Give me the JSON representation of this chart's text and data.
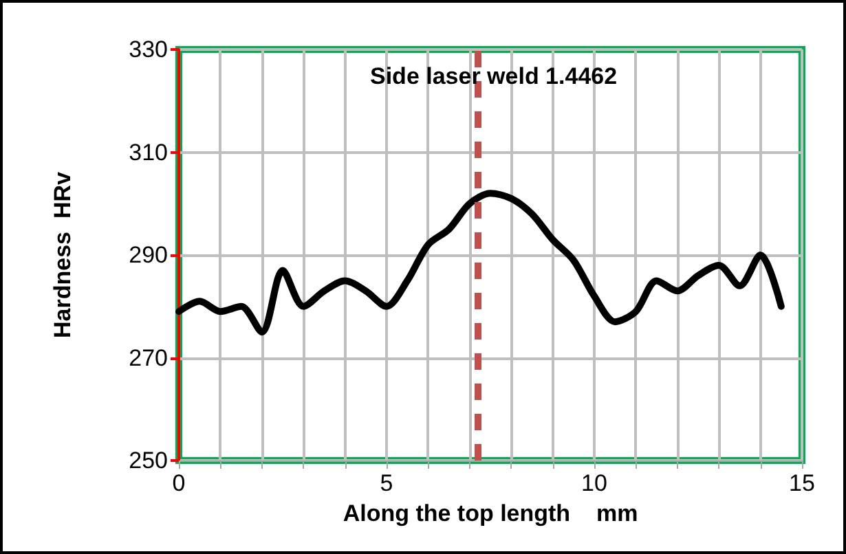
{
  "chart_data": {
    "type": "line",
    "title": "Side laser weld 1.4462",
    "xlabel": "Along the top length    mm",
    "ylabel": "Hardness  HRv",
    "x": [
      0,
      0.5,
      1,
      1.5,
      2,
      2.5,
      3,
      3.5,
      4,
      4.5,
      5,
      5.5,
      6,
      6.5,
      7,
      7.5,
      8,
      8.5,
      9,
      9.5,
      10,
      10.5,
      11,
      11.5,
      12,
      12.5,
      13,
      13.5,
      14,
      14.5
    ],
    "series": [
      {
        "color": "#000000",
        "values": [
          279,
          281,
          279,
          280,
          275,
          287,
          280,
          283,
          285,
          283,
          280,
          285,
          292,
          295,
          300,
          302,
          301,
          298,
          293,
          289,
          282,
          277,
          279,
          285,
          283,
          286,
          288,
          284,
          290,
          280
        ]
      }
    ],
    "xlim": [
      0,
      15
    ],
    "xticks": [
      0,
      {
        "value": 1,
        "label": null
      },
      {
        "value": 2,
        "label": null
      },
      {
        "value": 3,
        "label": null
      },
      {
        "value": 4,
        "label": null
      },
      5,
      {
        "value": 6,
        "label": null
      },
      {
        "value": 7,
        "label": null
      },
      {
        "value": 8,
        "label": null
      },
      {
        "value": 9,
        "label": null
      },
      10,
      {
        "value": 11,
        "label": null
      },
      {
        "value": 12,
        "label": null
      },
      {
        "value": 13,
        "label": null
      },
      {
        "value": 14,
        "label": null
      },
      15
    ],
    "ylim": [
      250,
      330
    ],
    "yticks": [
      250,
      270,
      290,
      310,
      330
    ],
    "ref_lines": [
      {
        "axis": "x",
        "value": 7.2,
        "color": "#c0504d",
        "line_style": "dashed"
      }
    ],
    "grid": true,
    "marker": "none",
    "line_style": "solid"
  }
}
